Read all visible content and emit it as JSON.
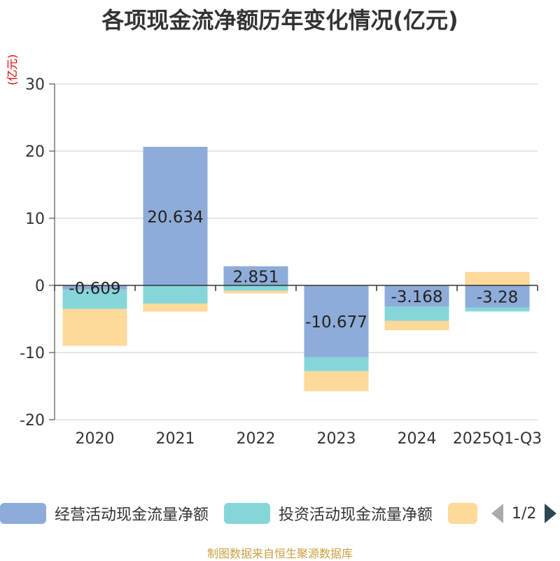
{
  "title": "各项现金流净额历年变化情况(亿元)",
  "unit_label": "(亿元)",
  "source": "制图数据来自恒生聚源数据库",
  "legend": {
    "items": [
      {
        "label": "经营活动现金流量净额",
        "color": "#8eacd9"
      },
      {
        "label": "投资活动现金流量净额",
        "color": "#86d6d9"
      },
      {
        "label": "",
        "color": "#fdd99a"
      }
    ],
    "page": "1/2"
  },
  "chart_data": {
    "type": "bar",
    "stacked": true,
    "title": "各项现金流净额历年变化情况(亿元)",
    "ylabel": "(亿元)",
    "xlabel": "",
    "ylim": [
      -20,
      30
    ],
    "yticks": [
      -20,
      -10,
      0,
      10,
      20,
      30
    ],
    "categories": [
      "2020",
      "2021",
      "2022",
      "2023",
      "2024",
      "2025Q1-Q3"
    ],
    "series": [
      {
        "name": "经营活动现金流量净额",
        "color": "#8eacd9",
        "values": [
          -0.609,
          20.634,
          2.851,
          -10.677,
          -3.168,
          -3.28
        ],
        "labels": [
          "-0.609",
          "20.634",
          "2.851",
          "-10.677",
          "-3.168",
          "-3.28"
        ]
      },
      {
        "name": "投资活动现金流量净额",
        "color": "#86d6d9",
        "values": [
          -2.9,
          -2.7,
          -0.8,
          -2.1,
          -2.1,
          -0.6
        ]
      },
      {
        "name": "",
        "color": "#fdd99a",
        "values": [
          -5.5,
          -1.2,
          -0.4,
          -3.0,
          -1.4,
          2.0
        ]
      }
    ]
  }
}
